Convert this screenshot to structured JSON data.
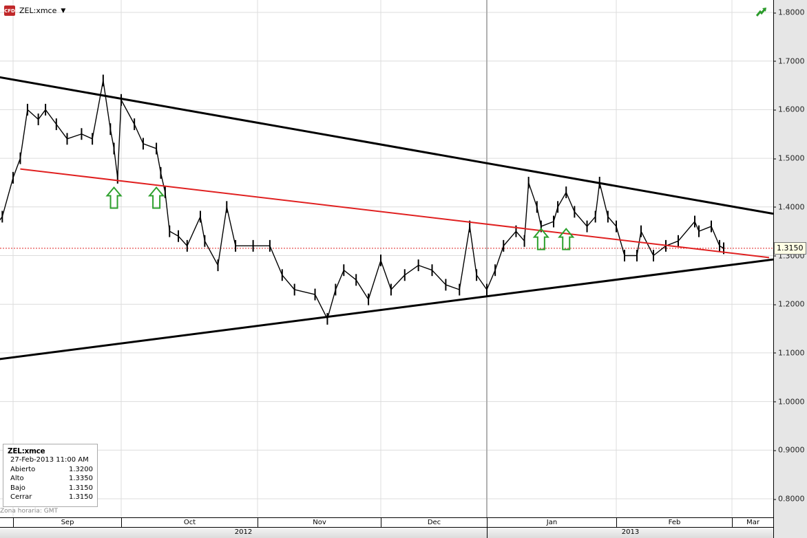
{
  "header": {
    "symbol": "ZEL:xmce",
    "badge": "CFD",
    "trend_icon": "trend-up-icon"
  },
  "info_box": {
    "title": "ZEL:xmce",
    "datetime": "27-Feb-2013 11:00 AM",
    "rows": [
      {
        "label": "Abierto",
        "value": "1.3200"
      },
      {
        "label": "Alto",
        "value": "1.3350"
      },
      {
        "label": "Bajo",
        "value": "1.3150"
      },
      {
        "label": "Cerrar",
        "value": "1.3150"
      }
    ]
  },
  "timezone": "Zona horaria: GMT",
  "current_price_label": "1.3150",
  "chart_data": {
    "type": "line",
    "ylim": [
      0.75,
      1.825
    ],
    "grid": true,
    "yticks": [
      "1.8000",
      "1.7000",
      "1.6000",
      "1.5000",
      "1.4000",
      "1.3000",
      "1.2000",
      "1.1000",
      "1.0000",
      "0.9000",
      "0.8000"
    ],
    "months": [
      {
        "label": "Sep",
        "start": "2012-09-01"
      },
      {
        "label": "Oct",
        "start": "2012-10-01"
      },
      {
        "label": "Nov",
        "start": "2012-11-01"
      },
      {
        "label": "Dec",
        "start": "2012-12-01"
      },
      {
        "label": "Jan",
        "start": "2013-01-01"
      },
      {
        "label": "Feb",
        "start": "2013-02-01"
      },
      {
        "label": "Mar",
        "start": "2013-03-01"
      }
    ],
    "years": [
      {
        "label": "2012",
        "start": "2012-08-28"
      },
      {
        "label": "2013",
        "start": "2013-01-01"
      }
    ],
    "series": [
      {
        "x": [
          "2012-08-28",
          "2012-08-29",
          "2012-09-01",
          "2012-09-03",
          "2012-09-05",
          "2012-09-08",
          "2012-09-10",
          "2012-09-13",
          "2012-09-16",
          "2012-09-20",
          "2012-09-23",
          "2012-09-26",
          "2012-09-28",
          "2012-09-29",
          "2012-09-30",
          "2012-10-01",
          "2012-10-04",
          "2012-10-06",
          "2012-10-09",
          "2012-10-10",
          "2012-10-11",
          "2012-10-12",
          "2012-10-14",
          "2012-10-16",
          "2012-10-19",
          "2012-10-20",
          "2012-10-23",
          "2012-10-25",
          "2012-10-27",
          "2012-10-31",
          "2012-11-04",
          "2012-11-07",
          "2012-11-10",
          "2012-11-15",
          "2012-11-18",
          "2012-11-20",
          "2012-11-22",
          "2012-11-25",
          "2012-11-28",
          "2012-12-01",
          "2012-12-04",
          "2012-12-08",
          "2012-12-12",
          "2012-12-16",
          "2012-12-20",
          "2012-12-24",
          "2012-12-27",
          "2012-12-29",
          "2013-01-01",
          "2013-01-03",
          "2013-01-05",
          "2013-01-08",
          "2013-01-10",
          "2013-01-11",
          "2013-01-13",
          "2013-01-14",
          "2013-01-17",
          "2013-01-18",
          "2013-01-20",
          "2013-01-22",
          "2013-01-25",
          "2013-01-27",
          "2013-01-28",
          "2013-01-30",
          "2013-02-01",
          "2013-02-03",
          "2013-02-06",
          "2013-02-07",
          "2013-02-10",
          "2013-02-13",
          "2013-02-16",
          "2013-02-20",
          "2013-02-21",
          "2013-02-24",
          "2013-02-26",
          "2013-02-27"
        ],
        "values": [
          1.37,
          1.38,
          1.46,
          1.5,
          1.6,
          1.58,
          1.6,
          1.57,
          1.54,
          1.55,
          1.54,
          1.66,
          1.56,
          1.52,
          1.46,
          1.62,
          1.57,
          1.53,
          1.52,
          1.47,
          1.43,
          1.35,
          1.34,
          1.32,
          1.38,
          1.33,
          1.28,
          1.4,
          1.32,
          1.32,
          1.32,
          1.26,
          1.23,
          1.22,
          1.17,
          1.23,
          1.27,
          1.25,
          1.21,
          1.29,
          1.23,
          1.26,
          1.28,
          1.27,
          1.24,
          1.23,
          1.36,
          1.26,
          1.23,
          1.27,
          1.32,
          1.35,
          1.33,
          1.45,
          1.4,
          1.36,
          1.37,
          1.4,
          1.43,
          1.39,
          1.36,
          1.38,
          1.45,
          1.38,
          1.36,
          1.3,
          1.3,
          1.35,
          1.3,
          1.32,
          1.33,
          1.37,
          1.35,
          1.36,
          1.32,
          1.315
        ]
      }
    ],
    "trendlines": [
      {
        "color": "#000000",
        "from": [
          "2012-08-28",
          1.667
        ],
        "to": [
          "2013-03-11",
          1.386
        ]
      },
      {
        "color": "#000000",
        "from": [
          "2012-08-28",
          1.087
        ],
        "to": [
          "2013-03-11",
          1.292
        ]
      },
      {
        "color": "#e02020",
        "from": [
          "2012-09-03",
          1.478
        ],
        "to": [
          "2013-03-10",
          1.296
        ]
      }
    ],
    "current_price_line": {
      "value": 1.315,
      "color": "#e02020"
    },
    "annotations": [
      {
        "type": "up-arrow",
        "date": "2012-09-29",
        "price": 1.44,
        "color": "#2ca02c"
      },
      {
        "type": "up-arrow",
        "date": "2012-10-09",
        "price": 1.44,
        "color": "#2ca02c"
      },
      {
        "type": "up-arrow",
        "date": "2013-01-14",
        "price": 1.355,
        "color": "#2ca02c"
      },
      {
        "type": "up-arrow",
        "date": "2013-01-20",
        "price": 1.355,
        "color": "#2ca02c"
      }
    ]
  }
}
